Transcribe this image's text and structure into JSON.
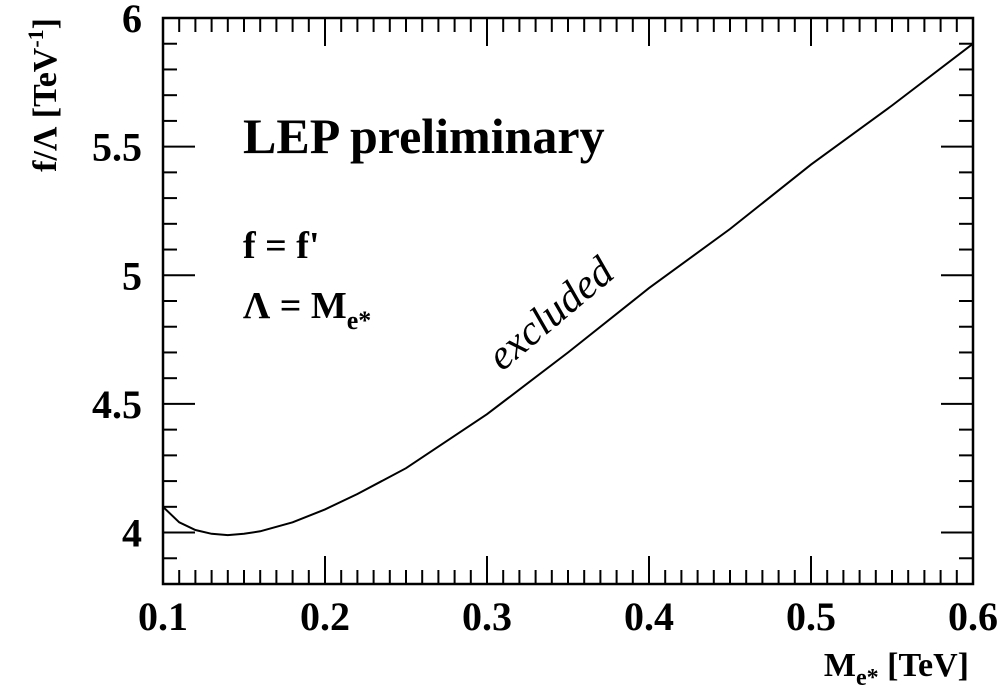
{
  "chart_data": {
    "type": "line",
    "title": "LEP preliminary",
    "xlabel": {
      "main": "M",
      "sub": "e*",
      "unit": " [TeV]"
    },
    "ylabel": {
      "main": "f/Λ [TeV",
      "sup": "-1",
      "close": "]"
    },
    "xlim": [
      0.1,
      0.6
    ],
    "ylim": [
      3.8,
      6.0
    ],
    "xticks": [
      0.1,
      0.2,
      0.3,
      0.4,
      0.5,
      0.6
    ],
    "xtick_labels": [
      "0.1",
      "0.2",
      "0.3",
      "0.4",
      "0.5",
      "0.6"
    ],
    "yticks": [
      4.0,
      4.5,
      5.0,
      5.5,
      6.0
    ],
    "ytick_labels": [
      "4",
      "4.5",
      "5",
      "5.5",
      "6"
    ],
    "grid": false,
    "annotations": {
      "cond1": "f = f'",
      "cond2_main": "Λ = M",
      "cond2_sub": "e*",
      "region": "excluded"
    },
    "series": [
      {
        "x": [
          0.1,
          0.11,
          0.12,
          0.13,
          0.14,
          0.15,
          0.16,
          0.18,
          0.2,
          0.22,
          0.25,
          0.3,
          0.35,
          0.4,
          0.45,
          0.5,
          0.55,
          0.6
        ],
        "y": [
          4.1,
          4.04,
          4.01,
          3.995,
          3.99,
          3.995,
          4.005,
          4.04,
          4.09,
          4.15,
          4.25,
          4.46,
          4.7,
          4.95,
          5.18,
          5.43,
          5.66,
          5.9
        ]
      }
    ]
  }
}
